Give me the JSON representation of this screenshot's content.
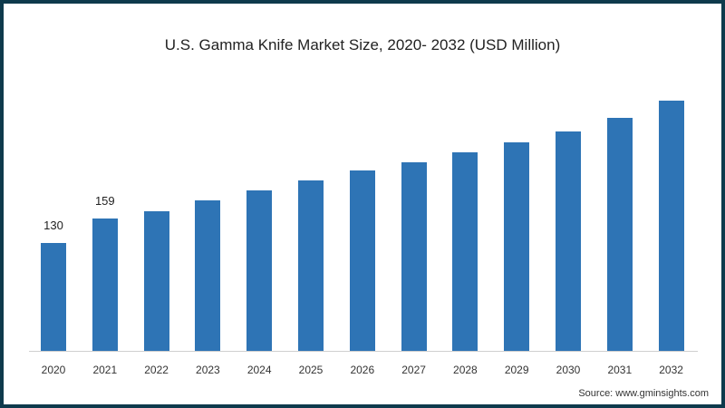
{
  "chart_data": {
    "type": "bar",
    "title": "U.S. Gamma Knife Market Size, 2020- 2032 (USD Million)",
    "xlabel": "",
    "ylabel": "",
    "categories": [
      "2020",
      "2021",
      "2022",
      "2023",
      "2024",
      "2025",
      "2026",
      "2027",
      "2028",
      "2029",
      "2030",
      "2031",
      "2032"
    ],
    "values": [
      130,
      159,
      168,
      181,
      193,
      205,
      217,
      227,
      239,
      251,
      264,
      281,
      301
    ],
    "data_labels": {
      "2020": "130",
      "2021": "159"
    },
    "ylim": [
      0,
      357
    ],
    "grid": false,
    "legend": null,
    "bar_color": "#2e74b5"
  },
  "source": "Source: www.gminsights.com",
  "colors": {
    "border": "#0e3a4c",
    "bar": "#2e74b5"
  }
}
